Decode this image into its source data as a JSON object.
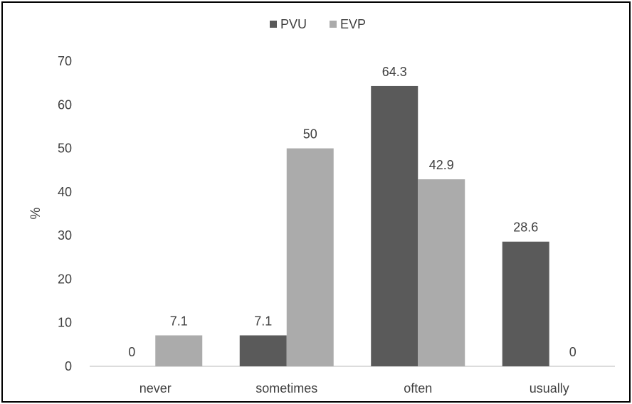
{
  "chart_data": {
    "type": "bar",
    "categories": [
      "never",
      "sometimes",
      "often",
      "usually"
    ],
    "series": [
      {
        "name": "PVU",
        "values": [
          0,
          7.1,
          64.3,
          28.6
        ],
        "color": "#5a5a5a"
      },
      {
        "name": "EVP",
        "values": [
          7.1,
          50,
          42.9,
          0
        ],
        "color": "#ababab"
      }
    ],
    "ylabel": "%",
    "ylim": [
      0,
      70
    ],
    "yticks": [
      0,
      10,
      20,
      30,
      40,
      50,
      60,
      70
    ],
    "legend_position": "top-center",
    "grid": false,
    "data_labels": true
  }
}
